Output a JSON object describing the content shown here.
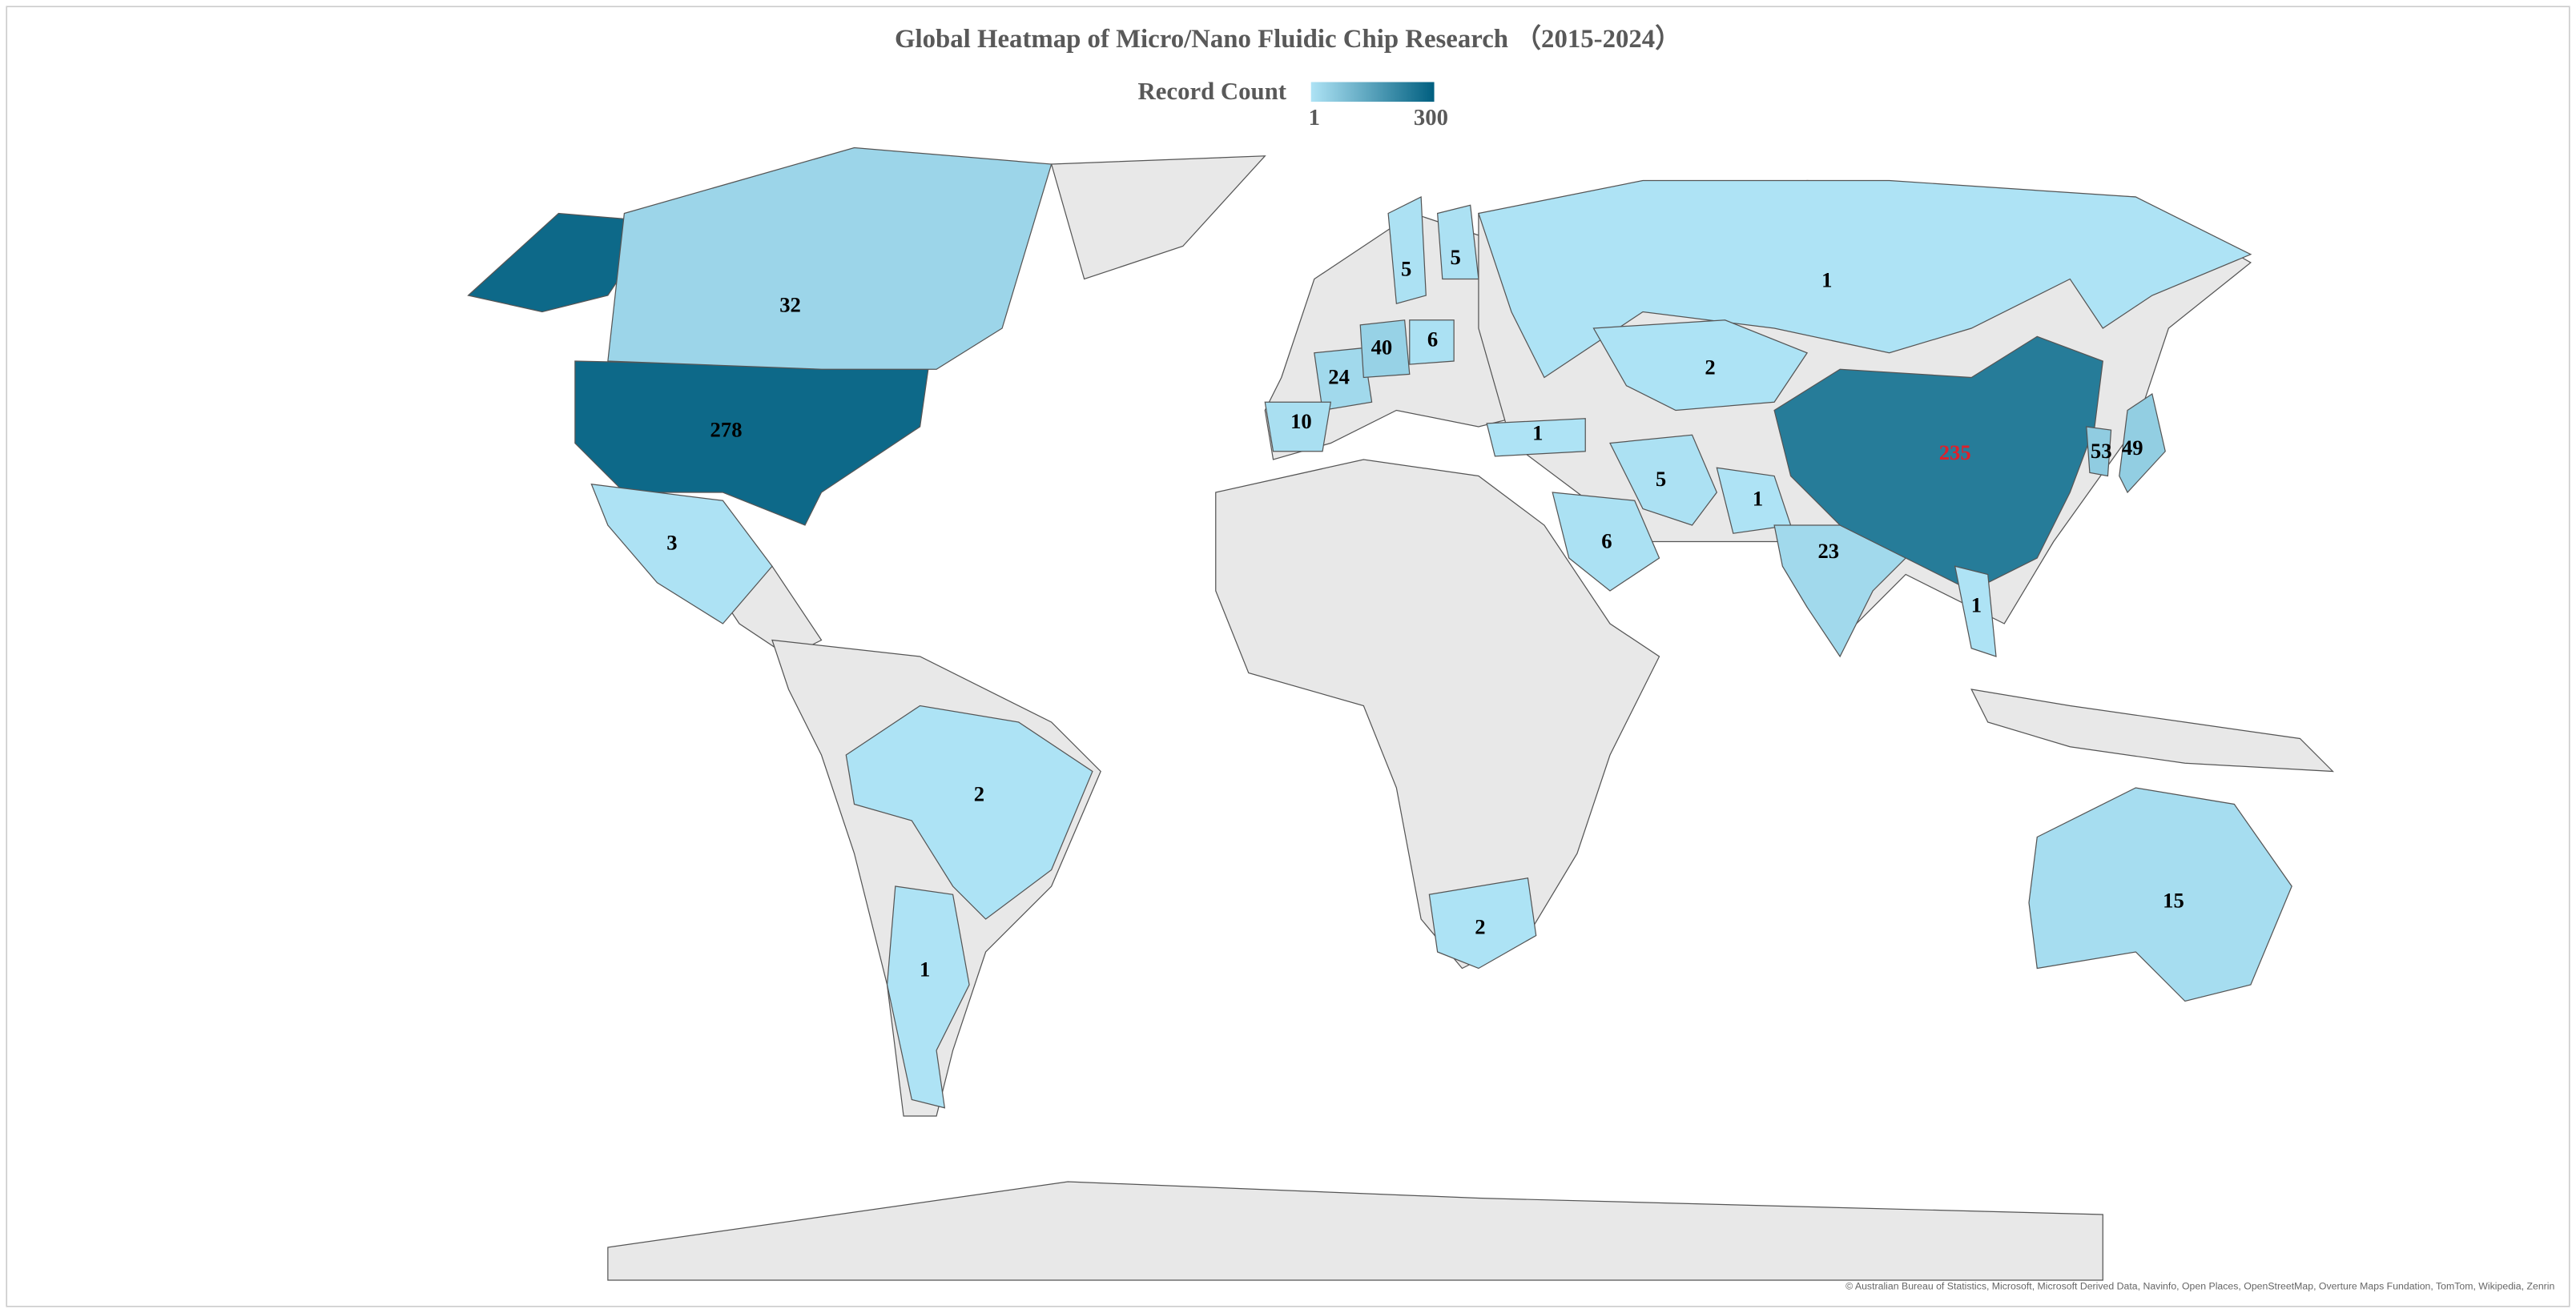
{
  "map": {
    "title": "Global Heatmap of Micro/Nano Fluidic Chip Research （2015-2024）",
    "legend_title": "Record Count",
    "color_scale": {
      "min": 1,
      "max": 300,
      "colors": [
        "#aee3f5",
        "#005f80"
      ]
    },
    "label_color": "#000000",
    "regions": [
      {
        "value": 278
      },
      {
        "value": 32
      },
      {
        "value": 3
      },
      {
        "value": 2
      },
      {
        "value": 1
      },
      {
        "value": 24
      },
      {
        "value": 40
      },
      {
        "value": 10
      },
      {
        "value": 6
      },
      {
        "value": 5
      },
      {
        "value": 5
      },
      {
        "value": 1
      },
      {
        "value": 1
      },
      {
        "value": 2
      },
      {
        "value": 5
      },
      {
        "value": 1
      },
      {
        "value": 6
      },
      {
        "value": 23
      },
      {
        "value": 235,
        "label_color": "#e0202a"
      },
      {
        "value": 53
      },
      {
        "value": 49
      },
      {
        "value": 1
      },
      {
        "value": 15
      },
      {
        "value": 2
      }
    ],
    "attribution": "© Australian Bureau of Statistics, Microsoft, Microsoft Derived Data, Navinfo, Open Places, OpenStreetMap, Overture Maps Fundation, TomTom, Wikipedia, Zenrin"
  }
}
